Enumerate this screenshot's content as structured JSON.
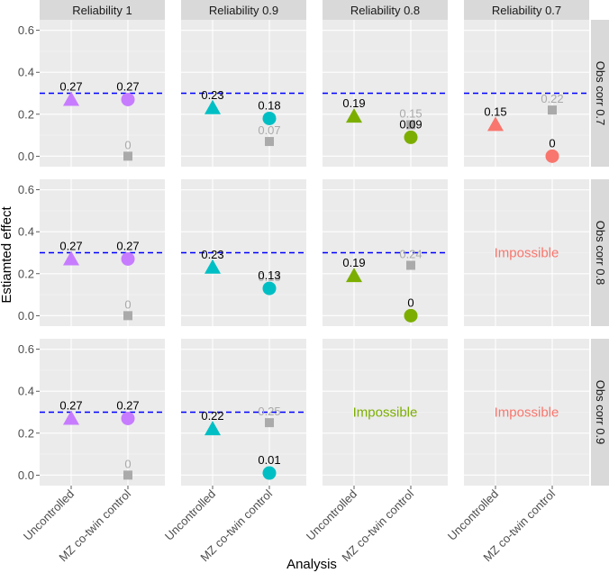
{
  "chart_data": {
    "type": "scatter",
    "title": "",
    "xlabel": "Analysis",
    "ylabel": "Estiamted effect",
    "ylim": [
      -0.05,
      0.65
    ],
    "y_ticks": [
      "0.0",
      "0.2",
      "0.4",
      "0.6"
    ],
    "y_tick_values": [
      0.0,
      0.2,
      0.4,
      0.6
    ],
    "categories": [
      "Uncontrolled",
      "MZ co-twin control"
    ],
    "reference_line": 0.3,
    "reference_color": "#0000ff",
    "columns": [
      "Reliability 1",
      "Reliability 0.9",
      "Reliability 0.8",
      "Reliability 0.7"
    ],
    "rows": [
      "Obs corr 0.7",
      "Obs corr 0.8",
      "Obs corr 0.9"
    ],
    "colors": [
      "#c77cff",
      "#00bfc4",
      "#7cae00",
      "#f8766d"
    ],
    "grey_color": "#aaaaaa",
    "impossible_label": "Impossible",
    "panels": [
      {
        "row": 0,
        "col": 0,
        "uncontrolled": 0.27,
        "uncontrolled_label": "0.27",
        "mz": 0.27,
        "mz_label": "0.27",
        "grey": 0.0,
        "grey_label": "0"
      },
      {
        "row": 0,
        "col": 1,
        "uncontrolled": 0.23,
        "uncontrolled_label": "0.23",
        "mz": 0.18,
        "mz_label": "0.18",
        "grey": 0.07,
        "grey_label": "0.07"
      },
      {
        "row": 0,
        "col": 2,
        "uncontrolled": 0.19,
        "uncontrolled_label": "0.19",
        "mz": 0.09,
        "mz_label": "0.09",
        "grey": 0.15,
        "grey_label": "0.15"
      },
      {
        "row": 0,
        "col": 3,
        "uncontrolled": 0.15,
        "uncontrolled_label": "0.15",
        "mz": 0.0,
        "mz_label": "0",
        "grey": 0.22,
        "grey_label": "0.22"
      },
      {
        "row": 1,
        "col": 0,
        "uncontrolled": 0.27,
        "uncontrolled_label": "0.27",
        "mz": 0.27,
        "mz_label": "0.27",
        "grey": 0.0,
        "grey_label": "0"
      },
      {
        "row": 1,
        "col": 1,
        "uncontrolled": 0.23,
        "uncontrolled_label": "0.23",
        "mz": 0.13,
        "mz_label": "0.13",
        "grey": 0.13,
        "grey_label": "0.13"
      },
      {
        "row": 1,
        "col": 2,
        "uncontrolled": 0.19,
        "uncontrolled_label": "0.19",
        "mz": 0.0,
        "mz_label": "0",
        "grey": 0.24,
        "grey_label": "0.24"
      },
      {
        "row": 1,
        "col": 3,
        "impossible": true
      },
      {
        "row": 2,
        "col": 0,
        "uncontrolled": 0.27,
        "uncontrolled_label": "0.27",
        "mz": 0.27,
        "mz_label": "0.27",
        "grey": 0.0,
        "grey_label": "0"
      },
      {
        "row": 2,
        "col": 1,
        "uncontrolled": 0.22,
        "uncontrolled_label": "0.22",
        "mz": 0.01,
        "mz_label": "0.01",
        "grey": 0.25,
        "grey_label": "0.25"
      },
      {
        "row": 2,
        "col": 2,
        "impossible": true
      },
      {
        "row": 2,
        "col": 3,
        "impossible": true
      }
    ]
  }
}
